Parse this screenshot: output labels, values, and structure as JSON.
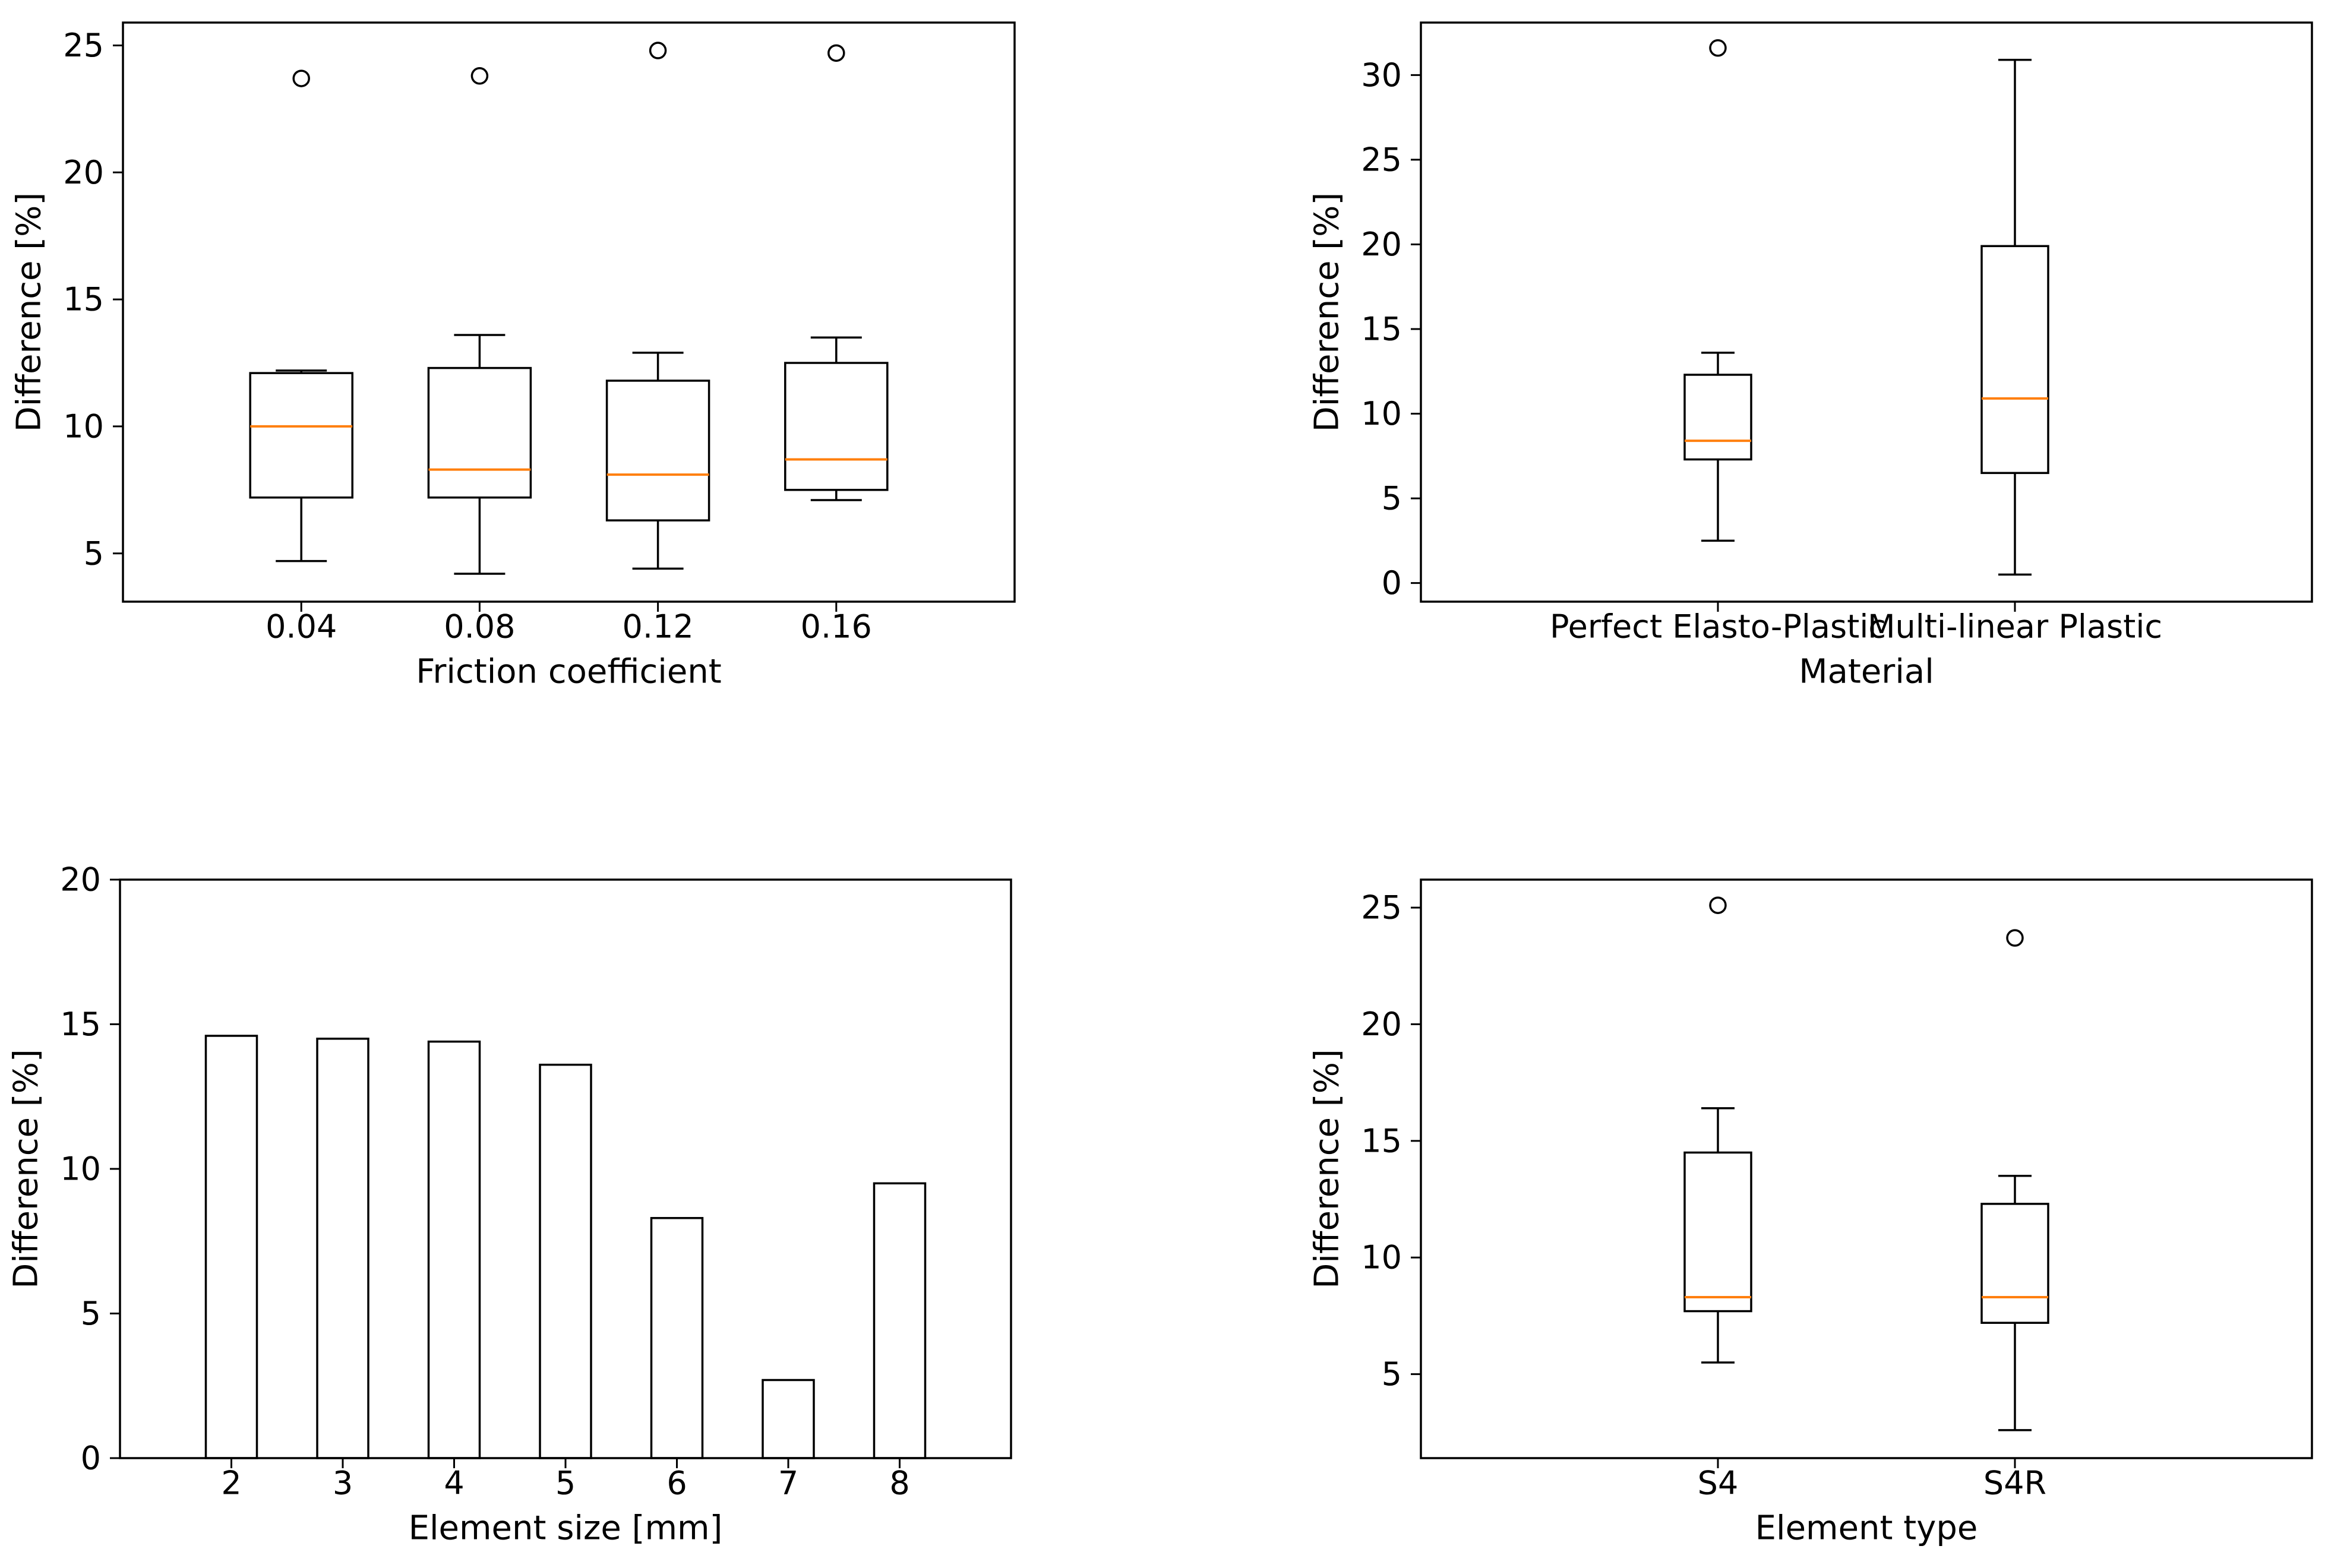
{
  "colors": {
    "median": "#ff7f0e",
    "ink": "#000000",
    "background": "#ffffff"
  },
  "chart_data": [
    {
      "id": "friction",
      "type": "boxplot",
      "xlabel": "Friction coefficient",
      "ylabel": "Difference [%]",
      "ylim": [
        3.1,
        25.9
      ],
      "yticks": [
        5,
        10,
        15,
        20,
        25
      ],
      "categories": [
        "0.04",
        "0.08",
        "0.12",
        "0.16"
      ],
      "boxes": [
        {
          "whislo": 4.7,
          "q1": 7.2,
          "med": 10.0,
          "q3": 12.1,
          "whishi": 12.2,
          "fliers": [
            23.7
          ]
        },
        {
          "whislo": 4.2,
          "q1": 7.2,
          "med": 8.3,
          "q3": 12.3,
          "whishi": 13.6,
          "fliers": [
            23.8
          ]
        },
        {
          "whislo": 4.4,
          "q1": 6.3,
          "med": 8.1,
          "q3": 11.8,
          "whishi": 12.9,
          "fliers": [
            24.8
          ]
        },
        {
          "whislo": 7.1,
          "q1": 7.5,
          "med": 8.7,
          "q3": 12.5,
          "whishi": 13.5,
          "fliers": [
            24.7
          ]
        }
      ]
    },
    {
      "id": "material",
      "type": "boxplot",
      "xlabel": "Material",
      "ylabel": "Difference [%]",
      "ylim": [
        -1.1,
        33.1
      ],
      "yticks": [
        0,
        5,
        10,
        15,
        20,
        25,
        30
      ],
      "categories": [
        "Perfect Elasto-Plastic",
        "Multi-linear Plastic"
      ],
      "boxes": [
        {
          "whislo": 2.5,
          "q1": 7.3,
          "med": 8.4,
          "q3": 12.3,
          "whishi": 13.6,
          "fliers": [
            31.6
          ]
        },
        {
          "whislo": 0.5,
          "q1": 6.5,
          "med": 10.9,
          "q3": 19.9,
          "whishi": 30.9,
          "fliers": []
        }
      ]
    },
    {
      "id": "element-size",
      "type": "bar",
      "xlabel": "Element size [mm]",
      "ylabel": "Difference [%]",
      "ylim": [
        0,
        20
      ],
      "yticks": [
        0,
        5,
        10,
        15,
        20
      ],
      "categories": [
        "2",
        "3",
        "4",
        "5",
        "6",
        "7",
        "8"
      ],
      "values": [
        14.6,
        14.5,
        14.4,
        13.6,
        8.3,
        2.7,
        9.5
      ]
    },
    {
      "id": "element-type",
      "type": "boxplot",
      "xlabel": "Element type",
      "ylabel": "Difference [%]",
      "ylim": [
        1.4,
        26.2
      ],
      "yticks": [
        5,
        10,
        15,
        20,
        25
      ],
      "categories": [
        "S4",
        "S4R"
      ],
      "boxes": [
        {
          "whislo": 5.5,
          "q1": 7.7,
          "med": 8.3,
          "q3": 14.5,
          "whishi": 16.4,
          "fliers": [
            25.1
          ]
        },
        {
          "whislo": 2.6,
          "q1": 7.2,
          "med": 8.3,
          "q3": 12.3,
          "whishi": 13.5,
          "fliers": [
            23.7
          ]
        }
      ]
    }
  ]
}
